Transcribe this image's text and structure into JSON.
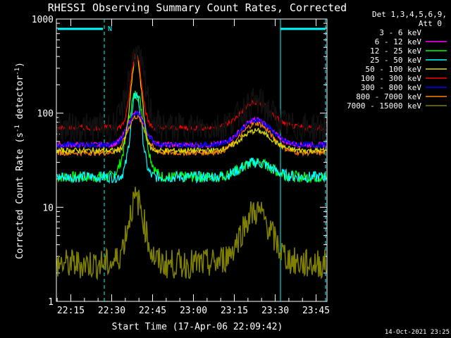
{
  "chart_data": {
    "type": "line",
    "title": "RHESSI Observing Summary Count Rates, Corrected",
    "xlabel": "Start Time (17-Apr-06 22:09:42)",
    "ylabel_prefix": "Corrected Count Rate (s",
    "ylabel_sup": "-1",
    "ylabel_mid": " detector",
    "ylabel_sup2": "-1",
    "ylabel_suffix": ")",
    "yscale": "log",
    "ylim": [
      1,
      1000
    ],
    "x_range_minutes": [
      "22:09:42",
      "23:49:00"
    ],
    "x_ticks": [
      "22:15",
      "22:30",
      "22:45",
      "23:00",
      "23:15",
      "23:30",
      "23:45"
    ],
    "y_ticks": [
      "1",
      "10",
      "100",
      "1000"
    ],
    "legend": {
      "header": [
        "Det 1,3,4,5,6,9,",
        "Att 0"
      ],
      "placement": "right"
    },
    "attenuator_marker": "N",
    "timestamp": "14-Oct-2021 23:25",
    "series": [
      {
        "name": "3 - 6 keV",
        "color": "#000000",
        "base": 70,
        "peak1": 430,
        "peak2": 130
      },
      {
        "name": "6 - 12 keV",
        "color": "#ff00ff",
        "base": 46,
        "peak1": 100,
        "peak2": 85
      },
      {
        "name": "12 - 25 keV",
        "color": "#00ff00",
        "base": 21,
        "peak1": 160,
        "peak2": 30
      },
      {
        "name": "25 - 50 keV",
        "color": "#00ffff",
        "base": 21,
        "peak1": 160,
        "peak2": 30
      },
      {
        "name": "50 - 100 keV",
        "color": "#dddd00",
        "base": 40,
        "peak1": 410,
        "peak2": 65
      },
      {
        "name": "100 - 300 keV",
        "color": "#ff0000",
        "base": 70,
        "peak1": 430,
        "peak2": 130
      },
      {
        "name": "300 - 800 keV",
        "color": "#0000ff",
        "base": 46,
        "peak1": 100,
        "peak2": 85
      },
      {
        "name": "800 - 7000 keV",
        "color": "#ff8000",
        "base": 38,
        "peak1": 92,
        "peak2": 78
      },
      {
        "name": "7000 - 15000 keV",
        "color": "#808000",
        "base": 2.5,
        "peak1": 12,
        "peak2": 9
      }
    ]
  }
}
